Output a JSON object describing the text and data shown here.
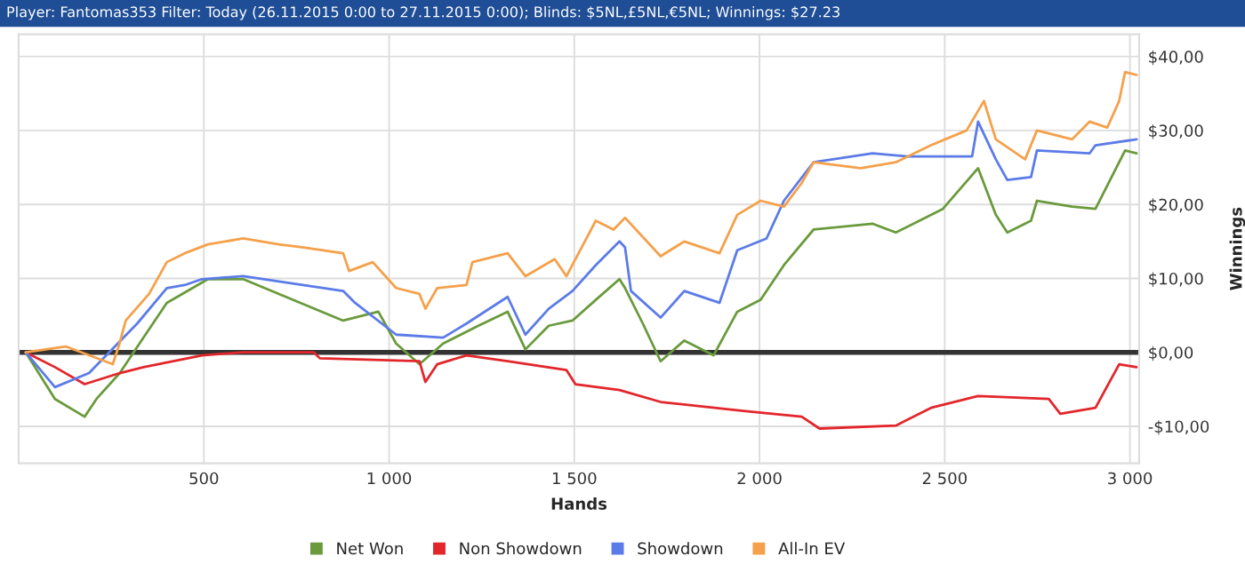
{
  "chart_data": {
    "type": "line",
    "title": "Player: Fantomas353 Filter: Today (26.11.2015 0:00 to 27.11.2015 0:00); Blinds: $5NL,£5NL,€5NL; Winnings: $27.23",
    "xlabel": "Hands",
    "ylabel": "Winnings",
    "xlim": [
      0,
      3025
    ],
    "ylim": [
      -15,
      43
    ],
    "xticks": [
      500,
      {
        "value": 1000,
        "label": "1 000"
      },
      {
        "value": 1500,
        "label": "1 500"
      },
      {
        "value": 2000,
        "label": "2 000"
      },
      {
        "value": 2500,
        "label": "2 500"
      },
      {
        "value": 3000,
        "label": "3 000"
      }
    ],
    "yticks": [
      {
        "value": -10,
        "label": "-$10,00"
      },
      {
        "value": 0,
        "label": "$0,00"
      },
      {
        "value": 10,
        "label": "$10,00"
      },
      {
        "value": 20,
        "label": "$20,00"
      },
      {
        "value": 30,
        "label": "$30,00"
      },
      {
        "value": 40,
        "label": "$40,00"
      }
    ],
    "grid": true,
    "legend": "bottom",
    "marker": "none",
    "line_style": "solid",
    "ref_lines": [
      {
        "axis": "y",
        "value": 0,
        "color": "#333333"
      }
    ],
    "series": [
      {
        "name": "Net Won",
        "color": "#6a9a3c",
        "x": [
          19,
          98,
          178,
          210,
          273,
          337,
          400,
          511,
          606,
          876,
          971,
          1019,
          1082,
          1146,
          1241,
          1320,
          1368,
          1431,
          1495,
          1558,
          1622,
          1637,
          1685,
          1733,
          1797,
          1876,
          1940,
          2003,
          2066,
          2146,
          2305,
          2368,
          2495,
          2590,
          2638,
          2669,
          2733,
          2749,
          2844,
          2907,
          2987,
          3018
        ],
        "values": [
          0,
          -6.3,
          -8.7,
          -6.3,
          -2.8,
          2,
          6.7,
          9.9,
          9.9,
          4.3,
          5.5,
          1.2,
          -1.6,
          1.2,
          3.6,
          5.5,
          0.4,
          3.6,
          4.3,
          7.1,
          9.9,
          8.7,
          3.9,
          -1.2,
          1.6,
          -0.4,
          5.5,
          7.1,
          11.8,
          16.6,
          17.4,
          16.2,
          19.4,
          24.9,
          18.6,
          16.2,
          17.8,
          20.5,
          19.7,
          19.4,
          27.3,
          26.9
        ]
      },
      {
        "name": "Non Showdown",
        "color": "#e3262b",
        "x": [
          19,
          98,
          178,
          273,
          337,
          495,
          606,
          797,
          813,
          1082,
          1098,
          1130,
          1209,
          1320,
          1479,
          1503,
          1622,
          1733,
          1956,
          2114,
          2162,
          2368,
          2463,
          2590,
          2781,
          2812,
          2907,
          2971,
          3018
        ],
        "values": [
          0,
          -2,
          -4.3,
          -2.8,
          -2,
          -0.4,
          0,
          0,
          -0.8,
          -1.2,
          -4,
          -1.6,
          -0.4,
          -1.2,
          -2.4,
          -4.3,
          -5.1,
          -6.7,
          -7.9,
          -8.7,
          -10.3,
          -9.9,
          -7.5,
          -5.9,
          -6.3,
          -8.3,
          -7.5,
          -1.6,
          -2
        ]
      },
      {
        "name": "Showdown",
        "color": "#5b7be8",
        "x": [
          19,
          98,
          190,
          320,
          400,
          448,
          495,
          606,
          876,
          908,
          1019,
          1146,
          1209,
          1320,
          1368,
          1431,
          1495,
          1558,
          1622,
          1637,
          1653,
          1733,
          1797,
          1892,
          1940,
          2019,
          2066,
          2146,
          2305,
          2400,
          2574,
          2590,
          2638,
          2669,
          2733,
          2749,
          2891,
          2907,
          3018
        ],
        "values": [
          0,
          -4.7,
          -2.8,
          3.9,
          8.7,
          9.1,
          9.9,
          10.3,
          8.3,
          6.7,
          2.4,
          2,
          3.9,
          7.5,
          2.4,
          5.9,
          8.3,
          11.8,
          15,
          14.2,
          8.3,
          4.7,
          8.3,
          6.7,
          13.8,
          15.4,
          20.5,
          25.7,
          26.9,
          26.5,
          26.5,
          31.2,
          26.1,
          23.3,
          23.7,
          27.3,
          26.9,
          28,
          28.8
        ]
      },
      {
        "name": "All-In EV",
        "color": "#f5a04a",
        "x": [
          19,
          127,
          254,
          270,
          289,
          352,
          400,
          448,
          511,
          606,
          702,
          765,
          876,
          892,
          956,
          1019,
          1082,
          1098,
          1130,
          1209,
          1225,
          1320,
          1368,
          1447,
          1479,
          1503,
          1558,
          1606,
          1637,
          1733,
          1797,
          1892,
          1940,
          2003,
          2066,
          2114,
          2146,
          2273,
          2368,
          2463,
          2559,
          2606,
          2638,
          2717,
          2749,
          2844,
          2891,
          2939,
          2971,
          2987,
          3018
        ],
        "values": [
          0,
          0.8,
          -1.6,
          0.8,
          4.3,
          7.9,
          12.2,
          13.4,
          14.6,
          15.4,
          14.6,
          14.2,
          13.4,
          11,
          12.2,
          8.7,
          7.9,
          5.9,
          8.7,
          9.1,
          12.2,
          13.4,
          10.3,
          12.6,
          10.3,
          12.6,
          17.8,
          16.6,
          18.2,
          13,
          15,
          13.4,
          18.6,
          20.5,
          19.7,
          22.9,
          25.7,
          24.9,
          25.7,
          28,
          30,
          34,
          28.8,
          26.1,
          30,
          28.8,
          31.2,
          30.4,
          34,
          37.9,
          37.5
        ]
      }
    ]
  }
}
